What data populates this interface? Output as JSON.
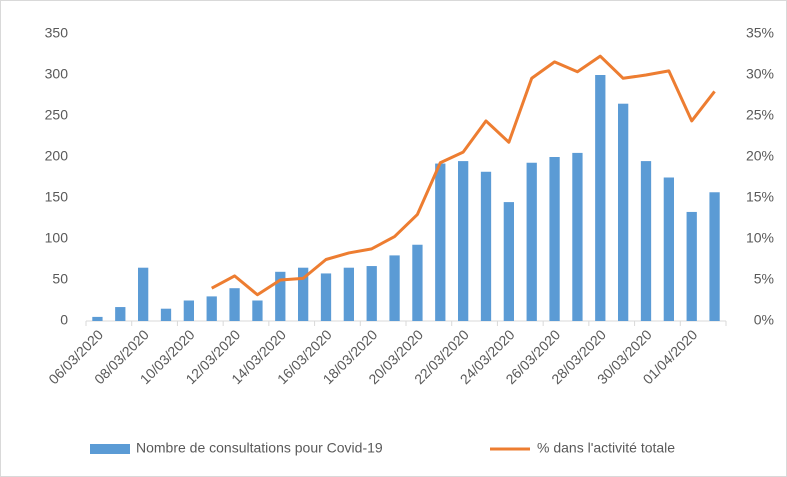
{
  "chart_data": {
    "type": "bar_line",
    "categories": [
      "06/03/2020",
      null,
      "08/03/2020",
      null,
      "10/03/2020",
      null,
      "12/03/2020",
      null,
      "14/03/2020",
      null,
      "16/03/2020",
      null,
      "18/03/2020",
      null,
      "20/03/2020",
      null,
      "22/03/2020",
      null,
      "24/03/2020",
      null,
      "26/03/2020",
      null,
      "28/03/2020",
      null,
      "30/03/2020",
      null,
      "01/04/2020",
      null
    ],
    "series": [
      {
        "name": "Nombre de consultations pour Covid-19",
        "color": "#5b9bd5",
        "type": "bar",
        "values": [
          5,
          17,
          65,
          15,
          25,
          30,
          40,
          25,
          60,
          65,
          58,
          65,
          67,
          80,
          93,
          192,
          195,
          182,
          145,
          193,
          200,
          205,
          300,
          265,
          195,
          175,
          133,
          157
        ]
      },
      {
        "name": "% dans l'activité totale",
        "color": "#ed7d31",
        "type": "line",
        "axis": "y2",
        "values": [
          null,
          null,
          null,
          null,
          null,
          4,
          5.5,
          3.2,
          5,
          5.2,
          7.5,
          8.3,
          8.8,
          10.3,
          13,
          19.3,
          20.6,
          24.4,
          21.8,
          29.6,
          31.6,
          30.4,
          32.3,
          29.6,
          30,
          30.5,
          24.4,
          28
        ]
      }
    ],
    "ylim": [
      0,
      350
    ],
    "yticks": [
      0,
      50,
      100,
      150,
      200,
      250,
      300,
      350
    ],
    "y2lim": [
      0,
      35
    ],
    "y2ticks": [
      {
        "value": 0,
        "label": "0%"
      },
      {
        "value": 5,
        "label": "5%"
      },
      {
        "value": 10,
        "label": "10%"
      },
      {
        "value": 15,
        "label": "15%"
      },
      {
        "value": 20,
        "label": "20%"
      },
      {
        "value": 25,
        "label": "25%"
      },
      {
        "value": 30,
        "label": "30%"
      },
      {
        "value": 35,
        "label": "35%"
      }
    ],
    "legend": "bottom"
  }
}
